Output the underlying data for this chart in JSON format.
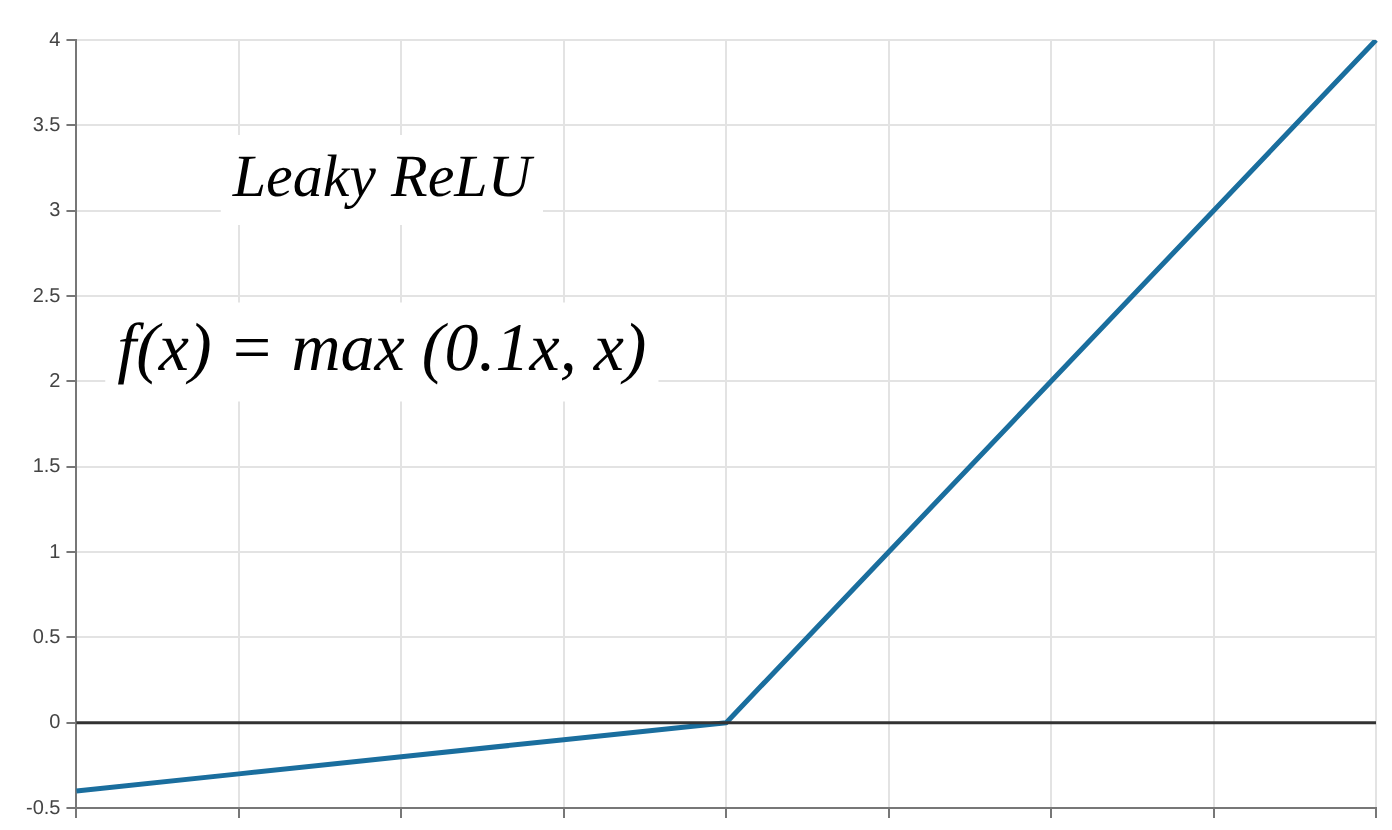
{
  "chart_data": {
    "type": "line",
    "categories": [
      null,
      null,
      null,
      null,
      null,
      null,
      null,
      null,
      null
    ],
    "series": [
      {
        "color": "#1a6e9e",
        "values": [
          -0.4,
          -0.3,
          -0.2,
          -0.1,
          0,
          1,
          2,
          3,
          4
        ]
      }
    ],
    "ylim": [
      -0.5,
      4
    ],
    "yticks": [
      -0.5,
      0,
      0.5,
      1,
      1.5,
      2,
      2.5,
      3,
      3.5,
      4
    ],
    "tick_labels": "y",
    "grid": true,
    "legend": false,
    "marker": "none",
    "line_style": "solid",
    "ref_lines": [
      {
        "axis": "y",
        "value": 0,
        "color": "#333333"
      }
    ],
    "annotations": [
      "Leaky ReLU",
      "f(x) = max (0.1x, x)"
    ]
  }
}
